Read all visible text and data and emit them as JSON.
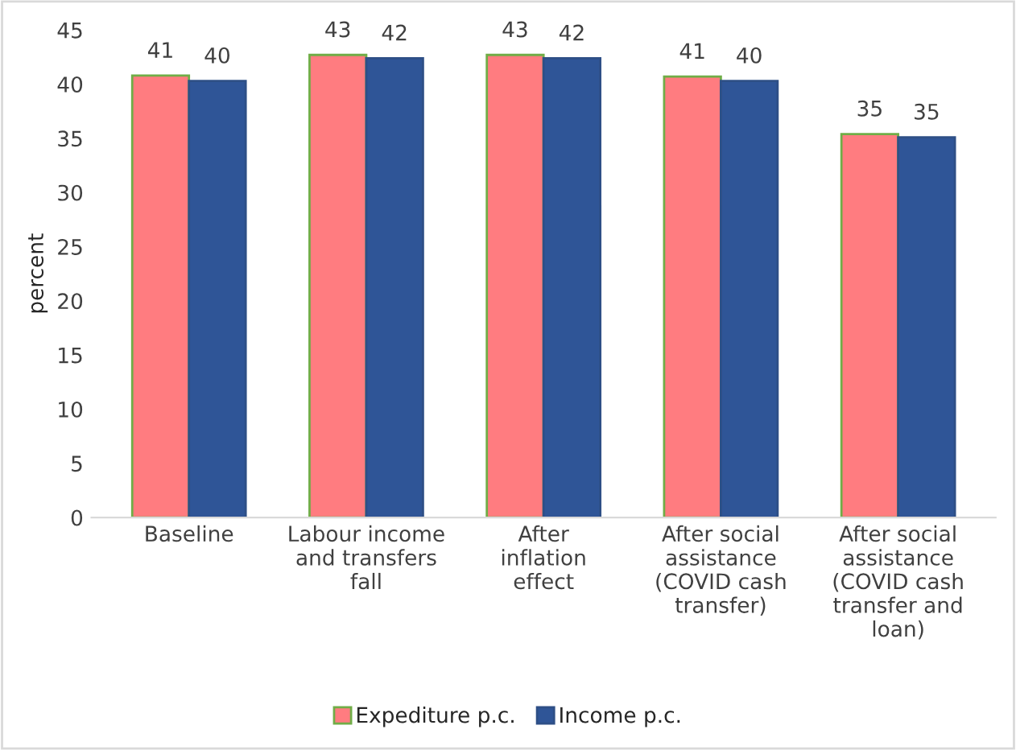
{
  "chart_data": {
    "type": "bar",
    "ylabel": "percent",
    "categories": [
      "Baseline",
      "Labour income and transfers fall",
      "After inflation effect",
      "After social assistance (COVID cash transfer)",
      "After social assistance (COVID cash transfer and loan)"
    ],
    "series": [
      {
        "name": "Expediture p.c.",
        "color": "#ff7c80",
        "values": [
          40.8,
          42.7,
          42.7,
          40.7,
          35.4
        ],
        "value_labels": [
          "41",
          "43",
          "43",
          "41",
          "35"
        ]
      },
      {
        "name": "Income p.c.",
        "color": "#2f5597",
        "values": [
          40.3,
          42.4,
          42.4,
          40.3,
          35.1
        ],
        "value_labels": [
          "40",
          "42",
          "42",
          "40",
          "35"
        ]
      }
    ],
    "ylim": [
      0,
      45
    ],
    "yticks": [
      0,
      5,
      10,
      15,
      20,
      25,
      30,
      35,
      40,
      45
    ],
    "grid": false,
    "legend": "bottom"
  }
}
